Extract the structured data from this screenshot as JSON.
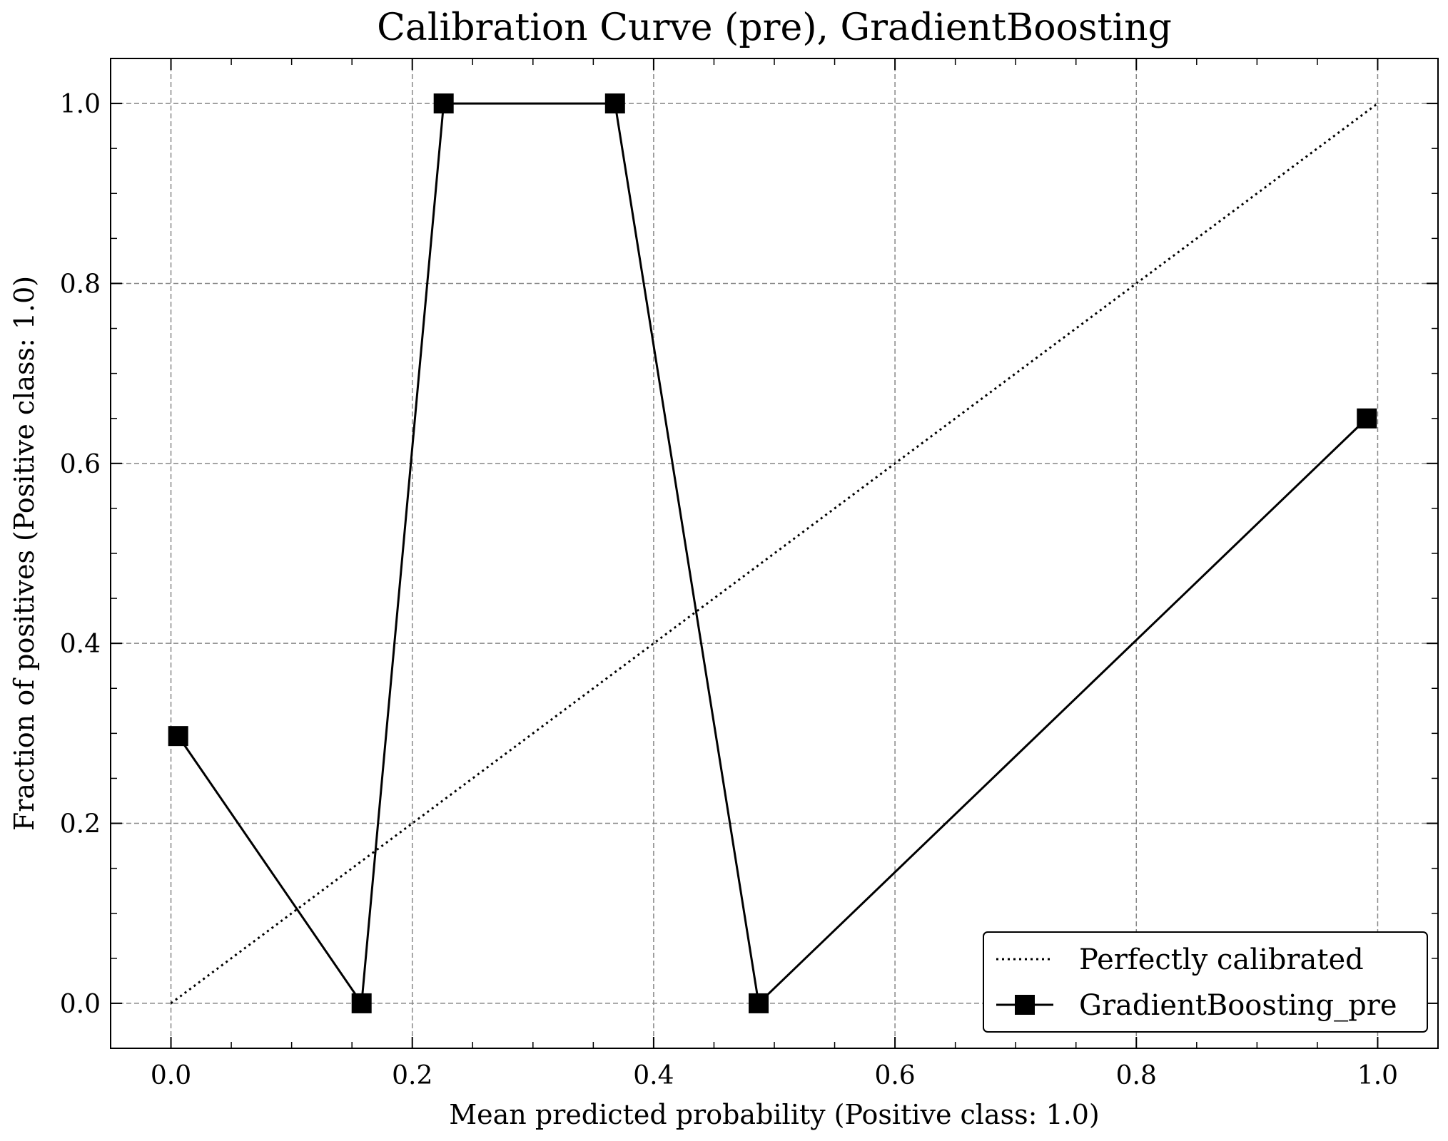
{
  "chart_data": {
    "type": "line",
    "title": "Calibration Curve (pre), GradientBoosting",
    "xlabel": "Mean predicted probability (Positive class: 1.0)",
    "ylabel": "Fraction of positives (Positive class: 1.0)",
    "xlim": [
      -0.05,
      1.05
    ],
    "ylim": [
      -0.05,
      1.05
    ],
    "xticks": [
      "0.0",
      "0.2",
      "0.4",
      "0.6",
      "0.8",
      "1.0"
    ],
    "yticks": [
      "0.0",
      "0.2",
      "0.4",
      "0.6",
      "0.8",
      "1.0"
    ],
    "grid": true,
    "legend_position": "lower-right",
    "series": [
      {
        "name": "Perfectly calibrated",
        "style": "dotted",
        "color": "#000000",
        "x": [
          0.0,
          1.0
        ],
        "y": [
          0.0,
          1.0
        ]
      },
      {
        "name": "GradientBoosting_pre",
        "style": "solid",
        "marker": "square",
        "color": "#000000",
        "x": [
          0.006,
          0.158,
          0.226,
          0.368,
          0.487,
          0.991
        ],
        "y": [
          0.297,
          0.0,
          1.0,
          1.0,
          0.0,
          0.65
        ]
      }
    ]
  }
}
